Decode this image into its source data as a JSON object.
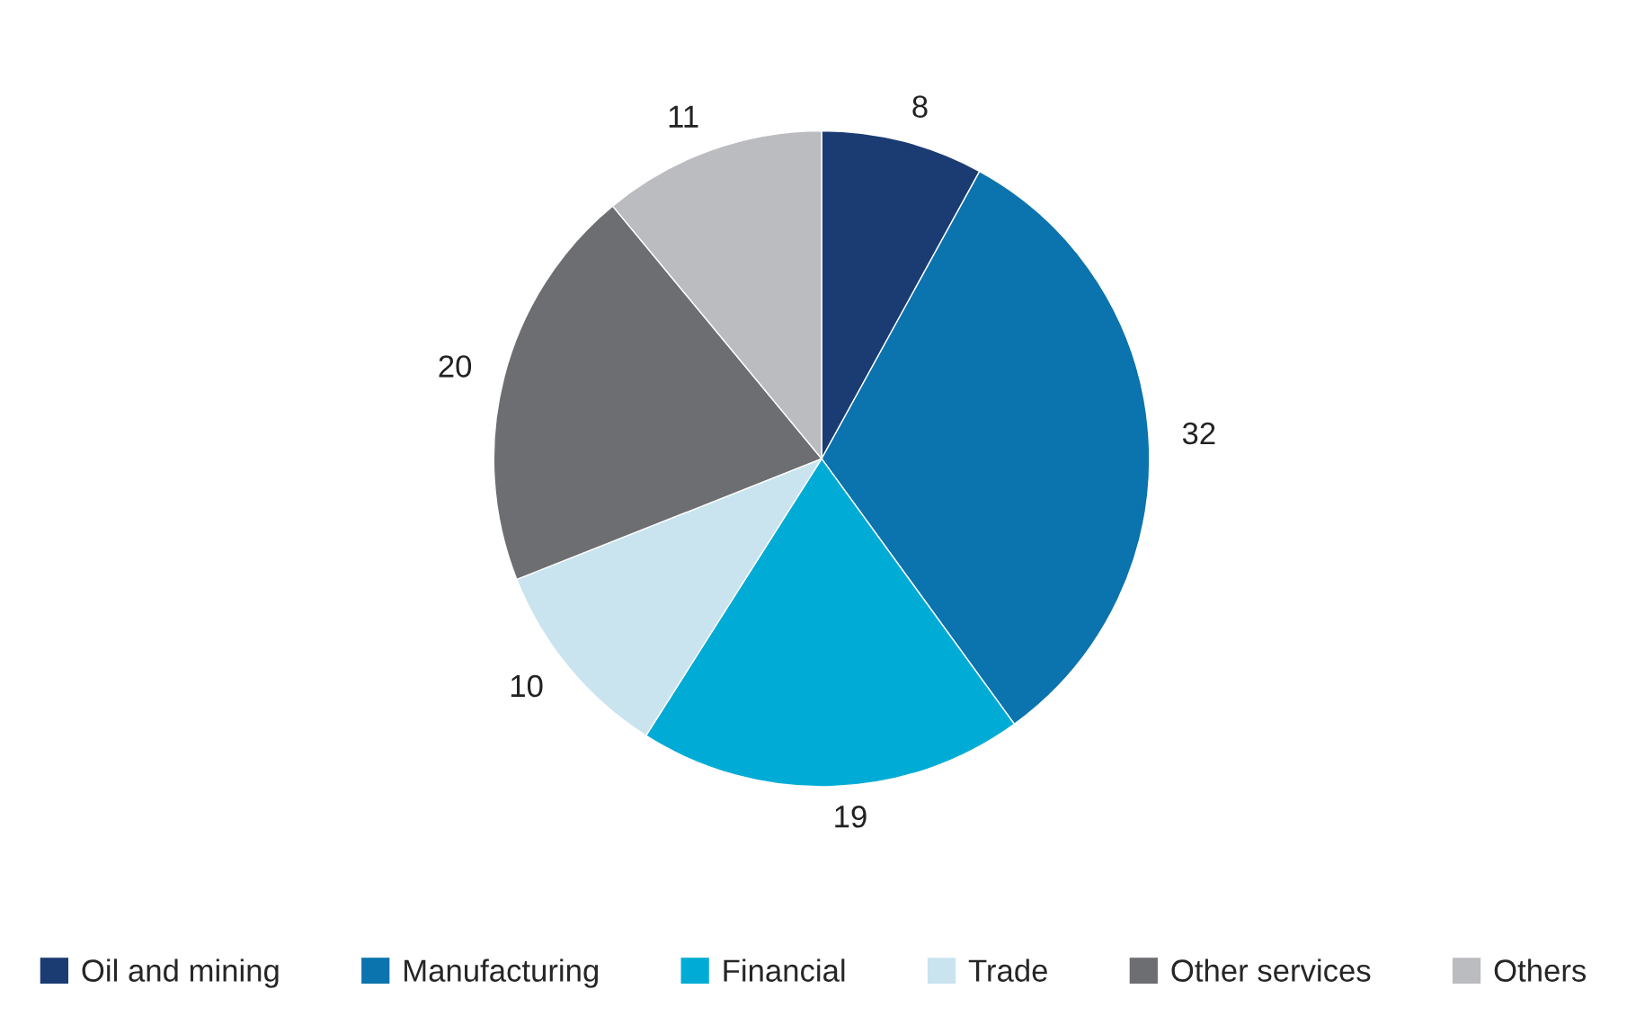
{
  "chart_data": {
    "type": "pie",
    "categories": [
      "Oil and mining",
      "Manufacturing",
      "Financial",
      "Trade",
      "Other services",
      "Others"
    ],
    "values": [
      8,
      32,
      19,
      10,
      20,
      11
    ],
    "colors": [
      "#1b3c73",
      "#0b73ad",
      "#00acd5",
      "#c9e4ef",
      "#6d6e71",
      "#bbbcbf"
    ],
    "data_labels": true,
    "legend": "bottom"
  }
}
